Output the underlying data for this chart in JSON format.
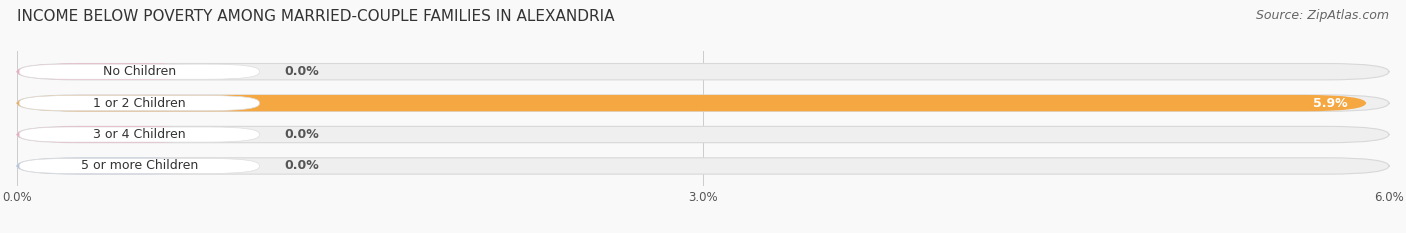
{
  "title": "INCOME BELOW POVERTY AMONG MARRIED-COUPLE FAMILIES IN ALEXANDRIA",
  "source": "Source: ZipAtlas.com",
  "categories": [
    "No Children",
    "1 or 2 Children",
    "3 or 4 Children",
    "5 or more Children"
  ],
  "values": [
    0.0,
    5.9,
    0.0,
    0.0
  ],
  "bar_colors": [
    "#f4a0b8",
    "#f5a842",
    "#f4a0b8",
    "#a8c4e8"
  ],
  "label_text_color": "#333333",
  "bar_track_color": "#efefef",
  "bar_track_border_color": "#d8d8d8",
  "xlim": [
    0,
    6.0
  ],
  "xticks": [
    0.0,
    3.0,
    6.0
  ],
  "xtick_labels": [
    "0.0%",
    "3.0%",
    "6.0%"
  ],
  "title_fontsize": 11,
  "source_fontsize": 9,
  "label_fontsize": 9,
  "value_fontsize": 9,
  "background_color": "#f9f9f9",
  "bar_height": 0.52,
  "label_pill_color": "#ffffff",
  "label_pill_edge": "#dddddd",
  "value_color_outside": "#555555",
  "value_color_inside": "#ffffff"
}
